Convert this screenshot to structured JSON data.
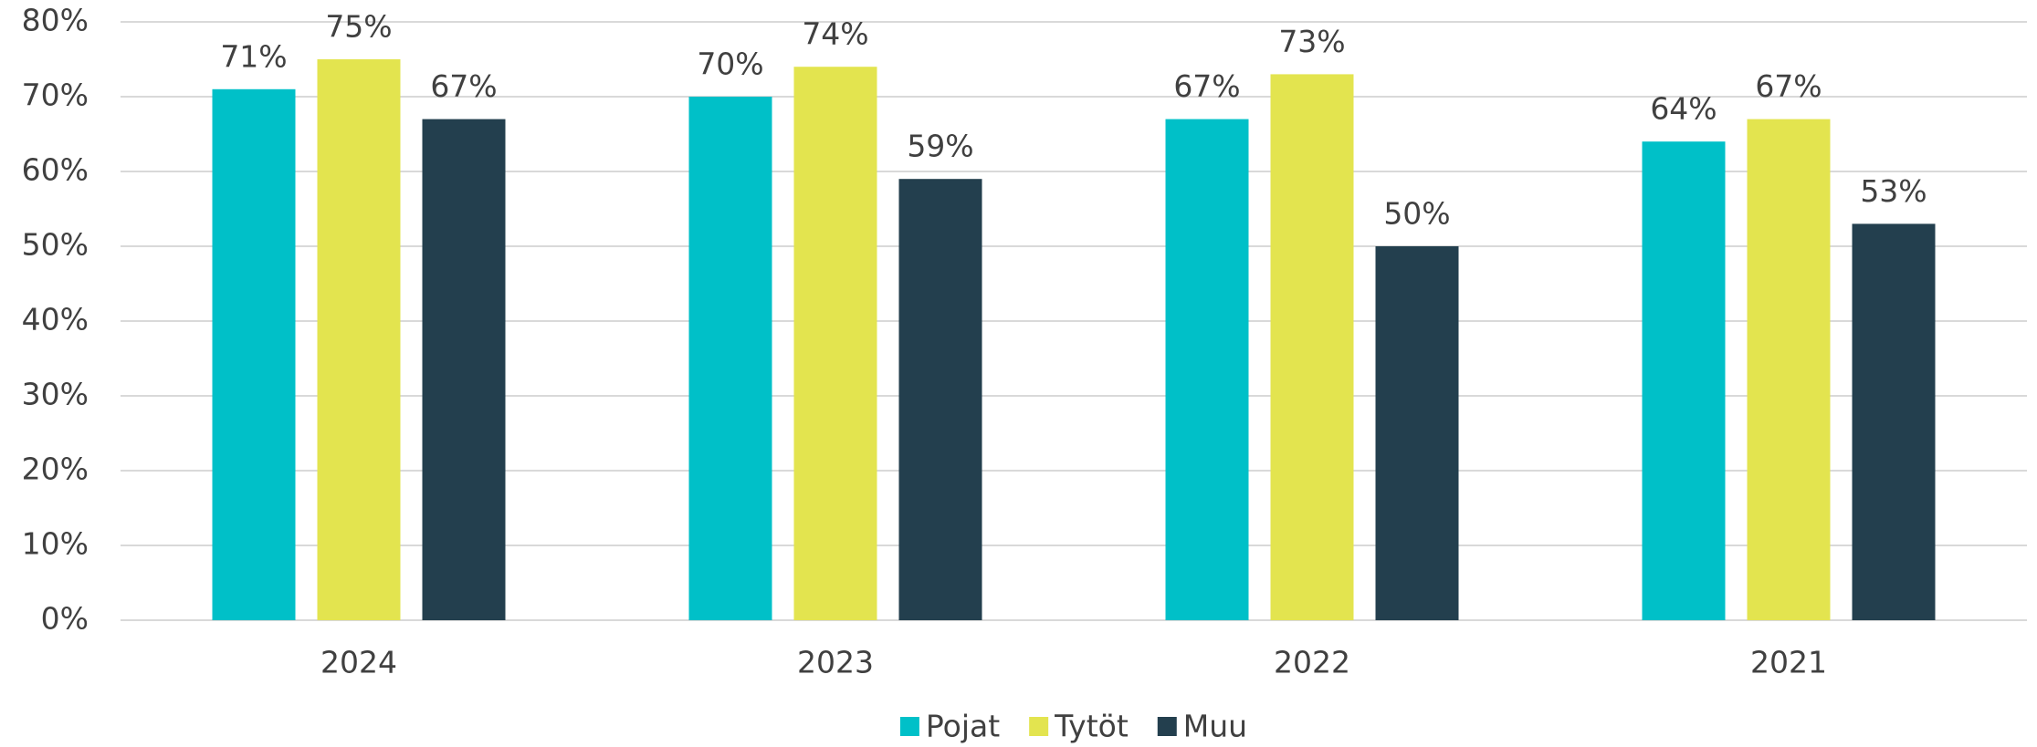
{
  "chart_data": {
    "type": "bar",
    "categories": [
      "2024",
      "2023",
      "2022",
      "2021"
    ],
    "series": [
      {
        "name": "Pojat",
        "color": "#00c0c8",
        "values": [
          71,
          70,
          67,
          64
        ],
        "value_labels": [
          "71%",
          "70%",
          "67%",
          "64%"
        ]
      },
      {
        "name": "Tytöt",
        "color": "#e3e44f",
        "values": [
          75,
          74,
          73,
          67
        ],
        "value_labels": [
          "75%",
          "74%",
          "73%",
          "67%"
        ]
      },
      {
        "name": "Muu",
        "color": "#233f4e",
        "values": [
          67,
          59,
          50,
          53
        ],
        "value_labels": [
          "67%",
          "59%",
          "50%",
          "53%"
        ]
      }
    ],
    "ylim": [
      0,
      80
    ],
    "yticks": [
      {
        "value": 0,
        "label": "0%"
      },
      {
        "value": 10,
        "label": "10%"
      },
      {
        "value": 20,
        "label": "20%"
      },
      {
        "value": 30,
        "label": "30%"
      },
      {
        "value": 40,
        "label": "40%"
      },
      {
        "value": 50,
        "label": "50%"
      },
      {
        "value": 60,
        "label": "60%"
      },
      {
        "value": 70,
        "label": "70%"
      },
      {
        "value": 80,
        "label": "80%"
      }
    ],
    "grid": true,
    "legend": "bottom"
  }
}
